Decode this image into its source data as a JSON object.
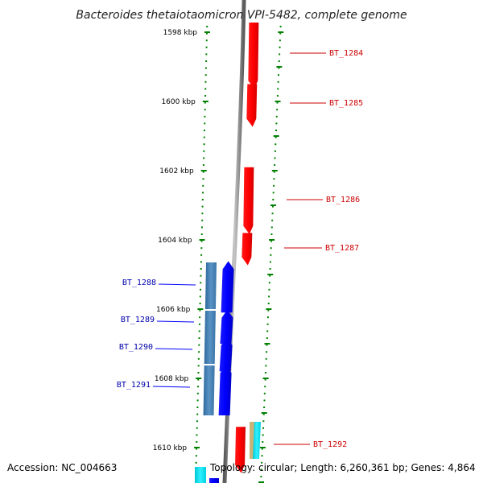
{
  "title": "Bacteroides thetaiotaomicron VPI-5482, complete genome",
  "accession": "Accession: NC_004663",
  "topology": "Topology: circular; Length: 6,260,361 bp; Genes: 4,864",
  "colors": {
    "forward": "#ff0000",
    "reverse": "#0000ff",
    "forward_label": "#cc0000",
    "reverse_label": "#0000aa",
    "tick": "#008000",
    "backbone": "#8c8c8c",
    "feature_steel": "#4682b4",
    "feature_cyan": "#00e5ee",
    "feature_tan": "#c8b47a"
  },
  "ticks": [
    "1598 kbp",
    "1600 kbp",
    "1602 kbp",
    "1604 kbp",
    "1606 kbp",
    "1608 kbp",
    "1610 kbp"
  ],
  "genes": {
    "forward": [
      {
        "name": "BT_1284",
        "start_kbp": 1597.7,
        "end_kbp": 1599.4
      },
      {
        "name": "BT_1285",
        "start_kbp": 1599.5,
        "end_kbp": 1600.5
      },
      {
        "name": "BT_1286",
        "start_kbp": 1601.9,
        "end_kbp": 1603.6
      },
      {
        "name": "BT_1287",
        "start_kbp": 1603.8,
        "end_kbp": 1604.5
      },
      {
        "name": "BT_1292",
        "start_kbp": 1609.4,
        "end_kbp": 1610.5
      }
    ],
    "reverse": [
      {
        "name": "BT_1288",
        "start_kbp": 1604.8,
        "end_kbp": 1606.1
      },
      {
        "name": "BT_1289",
        "start_kbp": 1606.2,
        "end_kbp": 1607.0
      },
      {
        "name": "BT_1290",
        "start_kbp": 1607.0,
        "end_kbp": 1607.8
      },
      {
        "name": "BT_1291",
        "start_kbp": 1607.8,
        "end_kbp": 1609.2
      }
    ]
  }
}
